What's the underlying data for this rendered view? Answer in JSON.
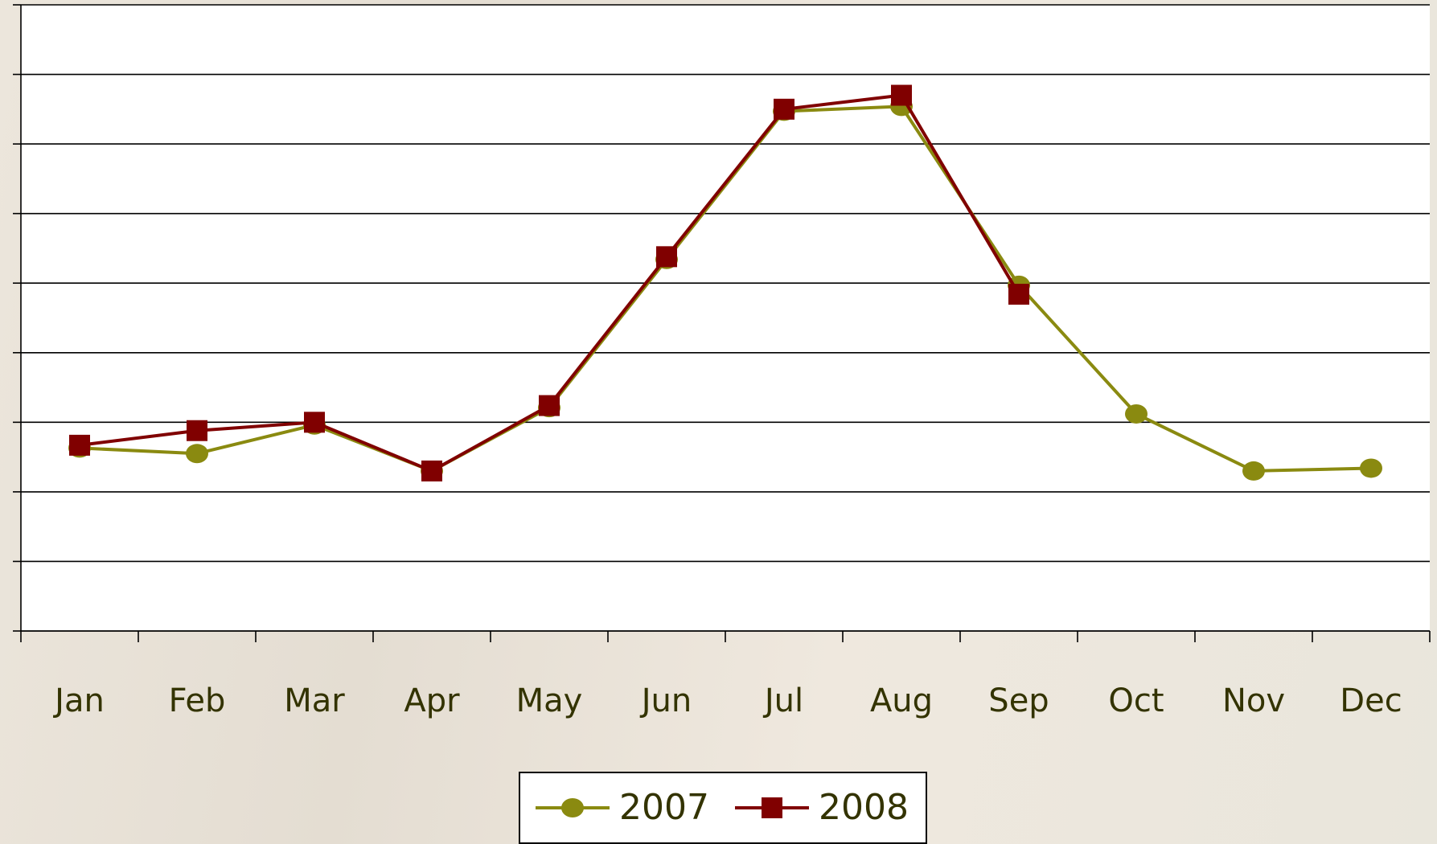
{
  "chart_data": {
    "type": "line",
    "categories": [
      "Jan",
      "Feb",
      "Mar",
      "Apr",
      "May",
      "Jun",
      "Jul",
      "Aug",
      "Sep",
      "Oct",
      "Nov",
      "Dec"
    ],
    "series": [
      {
        "name": "2007",
        "color": "#8a8a10",
        "marker": "circle",
        "values": [
          2.63,
          2.55,
          2.96,
          2.3,
          3.21,
          5.34,
          7.47,
          7.54,
          4.97,
          3.12,
          2.3,
          2.34
        ]
      },
      {
        "name": "2008",
        "color": "#800000",
        "marker": "square",
        "values": [
          2.67,
          2.88,
          3.0,
          2.3,
          3.24,
          5.38,
          7.5,
          7.7,
          4.84,
          null,
          null,
          null
        ]
      }
    ],
    "ylim": [
      0,
      9
    ],
    "yticks": [
      0,
      1,
      2,
      3,
      4,
      5,
      6,
      7,
      8,
      9
    ],
    "grid": true,
    "legend": "bottom"
  }
}
